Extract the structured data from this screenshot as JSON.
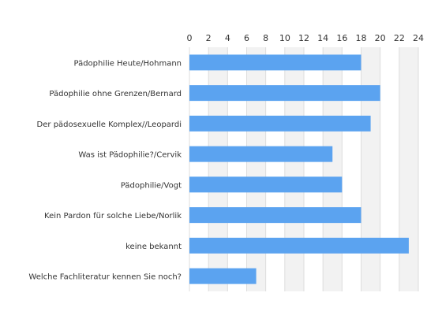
{
  "chart_data": {
    "type": "bar",
    "orientation": "horizontal",
    "categories": [
      "Pädophilie Heute/Hohmann",
      "Pädophilie ohne Grenzen/Bernard",
      "Der pädosexuelle Komplex//Leopardi",
      "Was ist Pädophilie?/Cervik",
      "Pädophilie/Vogt",
      "Kein Pardon für solche Liebe/Norlik",
      "keine bekannt",
      "Welche Fachliteratur kennen Sie noch?"
    ],
    "values": [
      18,
      20,
      19,
      15,
      16,
      18,
      23,
      7
    ],
    "xlim": [
      0,
      24
    ],
    "xticks": [
      0,
      2,
      4,
      6,
      8,
      10,
      12,
      14,
      16,
      18,
      20,
      22,
      24
    ],
    "x_axis_position": "top",
    "grid": "alternating vertical bands",
    "bar_color": "#5ba3f0",
    "band_color": "#f2f2f2",
    "grid_line_color": "#dddddd"
  }
}
